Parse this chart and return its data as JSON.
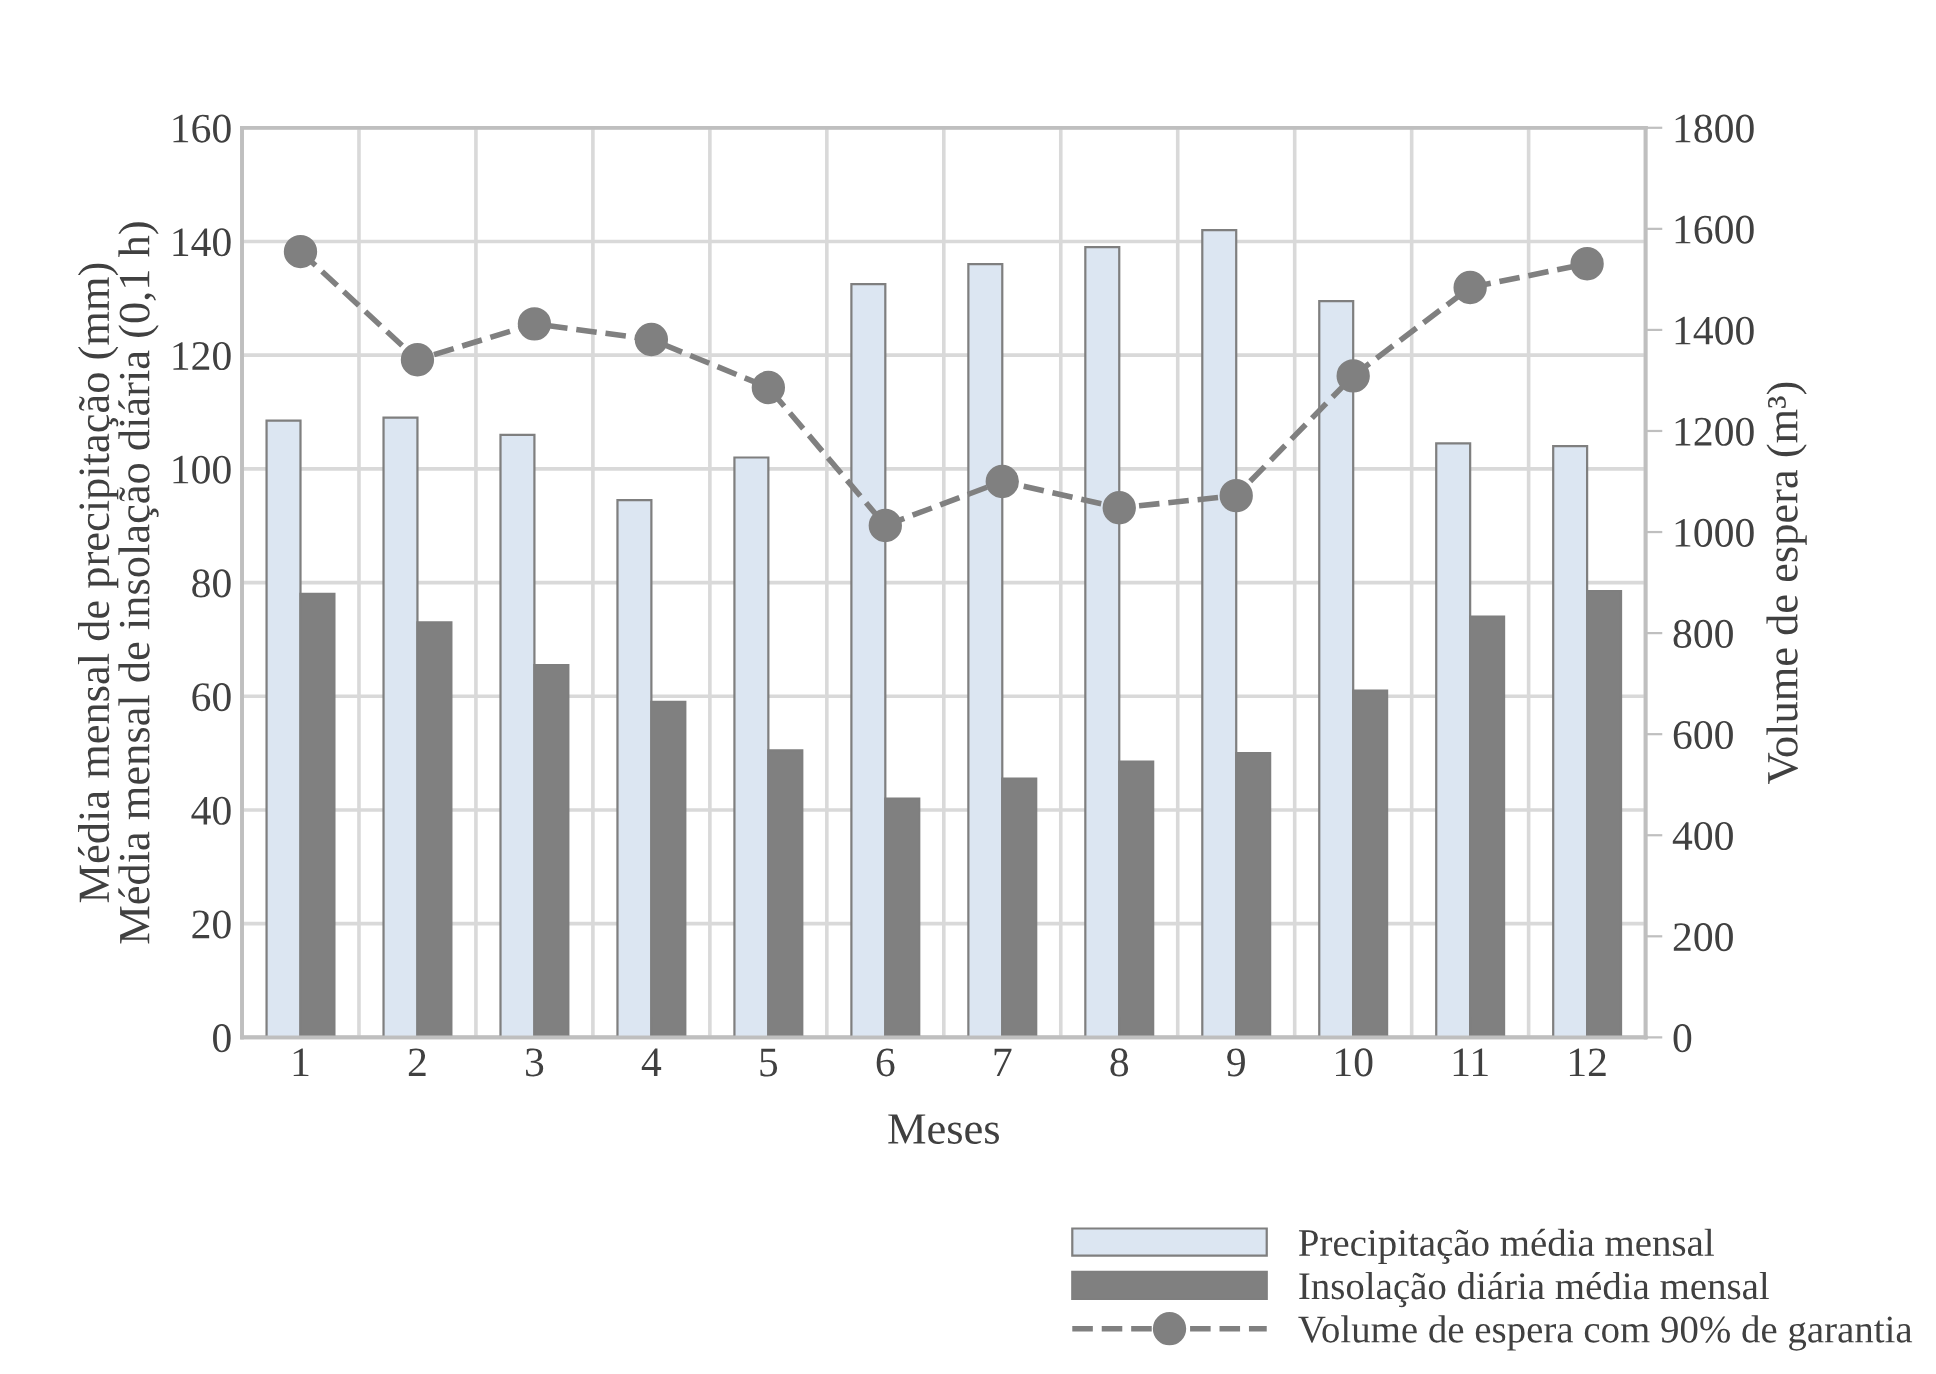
{
  "chart_data": {
    "type": "bar",
    "xlabel": "Meses",
    "ylabel": "Média mensal de precipitação (mm)\nMédia mensal de insolação diária (0,1 h)",
    "y2label": "Volume de espera (m³)",
    "categories": [
      "1",
      "2",
      "3",
      "4",
      "5",
      "6",
      "7",
      "8",
      "9",
      "10",
      "11",
      "12"
    ],
    "series": [
      {
        "name": "Precipitação média mensal",
        "color": "#dce6f2",
        "values": [
          108.5,
          109,
          106,
          94.5,
          102,
          132.5,
          136,
          139,
          142,
          129.5,
          104.5,
          104
        ]
      },
      {
        "name": "Insolação diária média mensal",
        "color": "#808080",
        "values": [
          78,
          73,
          65.5,
          59,
          50.5,
          42,
          45.5,
          48.5,
          50,
          61,
          74,
          78.5
        ]
      },
      {
        "name": "Volume de espera com 90% de garantia",
        "type": "line",
        "axis": "y2",
        "color": "#808080",
        "marker": "circle",
        "line_style": "dashed",
        "values": [
          1555,
          1341,
          1412,
          1381,
          1286,
          1013,
          1100,
          1048,
          1072,
          1309,
          1484,
          1531
        ]
      }
    ],
    "ylim": [
      0,
      160
    ],
    "yticks": [
      0,
      20,
      40,
      60,
      80,
      100,
      120,
      140,
      160
    ],
    "y2lim": [
      0,
      1800
    ],
    "y2ticks": [
      0,
      200,
      400,
      600,
      800,
      1000,
      1200,
      1400,
      1600,
      1800
    ],
    "grid": true,
    "legend": "bottom right"
  }
}
